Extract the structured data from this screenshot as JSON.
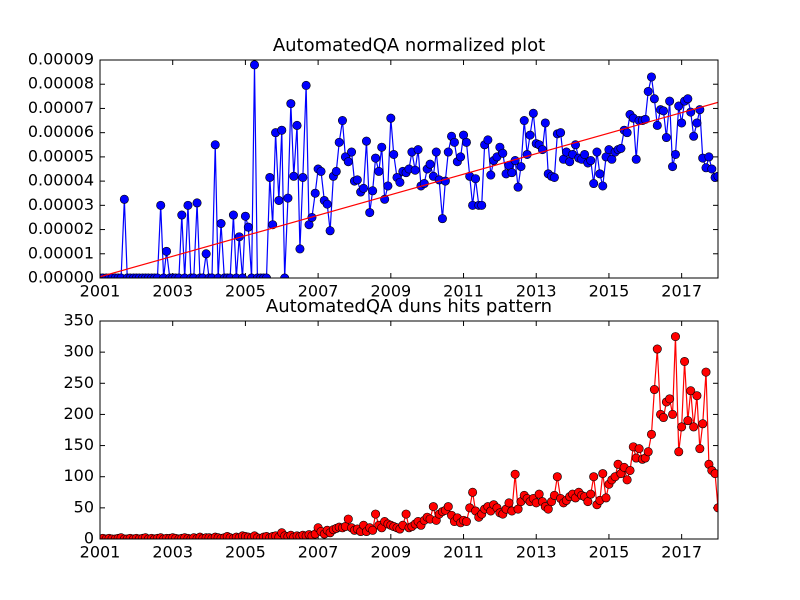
{
  "chart_data": [
    {
      "type": "line",
      "title": "AutomatedQA normalized plot",
      "xlim": [
        2001,
        2018
      ],
      "xticks": [
        2001,
        2003,
        2005,
        2007,
        2009,
        2011,
        2013,
        2015,
        2017
      ],
      "ylim": [
        0,
        9e-05
      ],
      "yticks": [
        {
          "value": 0,
          "label": "0.00000"
        },
        {
          "value": 1e-05,
          "label": "0.00001"
        },
        {
          "value": 2e-05,
          "label": "0.00002"
        },
        {
          "value": 3e-05,
          "label": "0.00003"
        },
        {
          "value": 4e-05,
          "label": "0.00004"
        },
        {
          "value": 5e-05,
          "label": "0.00005"
        },
        {
          "value": 6e-05,
          "label": "0.00006"
        },
        {
          "value": 7e-05,
          "label": "0.00007"
        },
        {
          "value": 8e-05,
          "label": "0.00008"
        },
        {
          "value": 9e-05,
          "label": "0.00009"
        }
      ],
      "x": [
        2001.0,
        2001.08,
        2001.17,
        2001.25,
        2001.33,
        2001.42,
        2001.5,
        2001.58,
        2001.67,
        2001.75,
        2001.83,
        2001.92,
        2002.0,
        2002.08,
        2002.17,
        2002.25,
        2002.33,
        2002.42,
        2002.5,
        2002.58,
        2002.67,
        2002.75,
        2002.83,
        2002.92,
        2003.0,
        2003.08,
        2003.17,
        2003.25,
        2003.33,
        2003.42,
        2003.5,
        2003.58,
        2003.67,
        2003.75,
        2003.83,
        2003.92,
        2004.0,
        2004.08,
        2004.17,
        2004.25,
        2004.33,
        2004.42,
        2004.5,
        2004.58,
        2004.67,
        2004.75,
        2004.83,
        2004.92,
        2005.0,
        2005.08,
        2005.17,
        2005.25,
        2005.33,
        2005.42,
        2005.5,
        2005.58,
        2005.67,
        2005.75,
        2005.83,
        2005.92,
        2006.0,
        2006.08,
        2006.17,
        2006.25,
        2006.33,
        2006.42,
        2006.5,
        2006.58,
        2006.67,
        2006.75,
        2006.83,
        2006.92,
        2007.0,
        2007.08,
        2007.17,
        2007.25,
        2007.33,
        2007.42,
        2007.5,
        2007.58,
        2007.67,
        2007.75,
        2007.83,
        2007.92,
        2008.0,
        2008.08,
        2008.17,
        2008.25,
        2008.33,
        2008.42,
        2008.5,
        2008.58,
        2008.67,
        2008.75,
        2008.83,
        2008.92,
        2009.0,
        2009.08,
        2009.17,
        2009.25,
        2009.33,
        2009.42,
        2009.5,
        2009.58,
        2009.67,
        2009.75,
        2009.83,
        2009.92,
        2010.0,
        2010.08,
        2010.17,
        2010.25,
        2010.33,
        2010.42,
        2010.5,
        2010.58,
        2010.67,
        2010.75,
        2010.83,
        2010.92,
        2011.0,
        2011.08,
        2011.17,
        2011.25,
        2011.33,
        2011.42,
        2011.5,
        2011.58,
        2011.67,
        2011.75,
        2011.83,
        2011.92,
        2012.0,
        2012.08,
        2012.17,
        2012.25,
        2012.33,
        2012.42,
        2012.5,
        2012.58,
        2012.67,
        2012.75,
        2012.83,
        2012.92,
        2013.0,
        2013.08,
        2013.17,
        2013.25,
        2013.33,
        2013.42,
        2013.5,
        2013.58,
        2013.67,
        2013.75,
        2013.83,
        2013.92,
        2014.0,
        2014.08,
        2014.17,
        2014.25,
        2014.33,
        2014.42,
        2014.5,
        2014.58,
        2014.67,
        2014.75,
        2014.83,
        2014.92,
        2015.0,
        2015.08,
        2015.17,
        2015.25,
        2015.33,
        2015.42,
        2015.5,
        2015.58,
        2015.67,
        2015.75,
        2015.83,
        2015.92,
        2016.0,
        2016.08,
        2016.17,
        2016.25,
        2016.33,
        2016.42,
        2016.5,
        2016.58,
        2016.67,
        2016.75,
        2016.83,
        2016.92,
        2017.0,
        2017.08,
        2017.17,
        2017.25,
        2017.33,
        2017.42,
        2017.5,
        2017.58,
        2017.67,
        2017.75,
        2017.83,
        2017.92,
        2018.0
      ],
      "series": [
        {
          "color": "#0000ff",
          "values": [
            0,
            0,
            0,
            0,
            0,
            0,
            0,
            0,
            3.25e-05,
            0,
            0,
            0,
            0,
            0,
            0,
            0,
            0,
            0,
            0,
            0,
            3e-05,
            0,
            1.1e-05,
            0,
            0,
            0,
            0,
            2.6e-05,
            0,
            3e-05,
            0,
            0,
            3.1e-05,
            0,
            0,
            1e-05,
            0,
            0,
            5.5e-05,
            0,
            2.25e-05,
            0,
            0,
            0,
            2.6e-05,
            0,
            1.7e-05,
            0,
            2.55e-05,
            2.1e-05,
            0,
            8.8e-05,
            0,
            0,
            0,
            0,
            4.15e-05,
            2.2e-05,
            6e-05,
            3.2e-05,
            6.1e-05,
            0,
            3.3e-05,
            7.2e-05,
            4.2e-05,
            6.3e-05,
            1.2e-05,
            4.15e-05,
            7.95e-05,
            2.2e-05,
            2.5e-05,
            3.5e-05,
            4.5e-05,
            4.4e-05,
            3.2e-05,
            3.05e-05,
            1.95e-05,
            4.2e-05,
            4.4e-05,
            5.6e-05,
            6.5e-05,
            5e-05,
            4.8e-05,
            5.2e-05,
            4e-05,
            4.05e-05,
            3.55e-05,
            3.7e-05,
            5.65e-05,
            2.7e-05,
            3.6e-05,
            4.95e-05,
            4.4e-05,
            5.4e-05,
            3.25e-05,
            3.8e-05,
            6.6e-05,
            5.1e-05,
            4.15e-05,
            3.95e-05,
            4.4e-05,
            4.35e-05,
            4.5e-05,
            5.2e-05,
            4.45e-05,
            5.3e-05,
            3.8e-05,
            3.9e-05,
            4.5e-05,
            4.7e-05,
            4.2e-05,
            5.2e-05,
            4.05e-05,
            2.45e-05,
            4e-05,
            5.2e-05,
            5.85e-05,
            5.6e-05,
            4.8e-05,
            5e-05,
            5.9e-05,
            5.6e-05,
            4.2e-05,
            3e-05,
            4.1e-05,
            3e-05,
            3e-05,
            5.5e-05,
            5.7e-05,
            4.25e-05,
            4.85e-05,
            5e-05,
            5.4e-05,
            5.15e-05,
            4.3e-05,
            4.65e-05,
            4.35e-05,
            4.85e-05,
            3.75e-05,
            4.6e-05,
            6.5e-05,
            5.1e-05,
            5.9e-05,
            6.8e-05,
            5.55e-05,
            5.5e-05,
            5.3e-05,
            6.4e-05,
            4.3e-05,
            4.2e-05,
            4.15e-05,
            5.95e-05,
            6e-05,
            4.9e-05,
            5.2e-05,
            4.8e-05,
            5.1e-05,
            5.5e-05,
            4.95e-05,
            4.9e-05,
            5.1e-05,
            4.75e-05,
            4.85e-05,
            3.9e-05,
            5.2e-05,
            4.3e-05,
            3.8e-05,
            5e-05,
            5.3e-05,
            4.9e-05,
            5.2e-05,
            5.3e-05,
            5.35e-05,
            6.1e-05,
            6e-05,
            6.75e-05,
            6.6e-05,
            4.9e-05,
            6.5e-05,
            6.5e-05,
            6.55e-05,
            7.7e-05,
            8.3e-05,
            7.4e-05,
            6.3e-05,
            6.95e-05,
            6.9e-05,
            5.8e-05,
            7.3e-05,
            4.6e-05,
            5.1e-05,
            7.1e-05,
            6.4e-05,
            7.3e-05,
            7.4e-05,
            6.85e-05,
            5.85e-05,
            6.4e-05,
            6.95e-05,
            4.95e-05,
            4.55e-05,
            5e-05,
            4.5e-05,
            4.15e-05,
            4.2e-05
          ]
        }
      ],
      "trend": {
        "color": "#ff0000",
        "x": [
          2001,
          2018
        ],
        "values": [
          5e-07,
          7.25e-05
        ]
      }
    },
    {
      "type": "line",
      "title": "AutomatedQA duns hits pattern",
      "xlim": [
        2001,
        2018
      ],
      "xticks": [
        2001,
        2003,
        2005,
        2007,
        2009,
        2011,
        2013,
        2015,
        2017
      ],
      "ylim": [
        0,
        350
      ],
      "yticks": [
        0,
        50,
        100,
        150,
        200,
        250,
        300,
        350
      ],
      "x": [
        2001.0,
        2001.08,
        2001.17,
        2001.25,
        2001.33,
        2001.42,
        2001.5,
        2001.58,
        2001.67,
        2001.75,
        2001.83,
        2001.92,
        2002.0,
        2002.08,
        2002.17,
        2002.25,
        2002.33,
        2002.42,
        2002.5,
        2002.58,
        2002.67,
        2002.75,
        2002.83,
        2002.92,
        2003.0,
        2003.08,
        2003.17,
        2003.25,
        2003.33,
        2003.42,
        2003.5,
        2003.58,
        2003.67,
        2003.75,
        2003.83,
        2003.92,
        2004.0,
        2004.08,
        2004.17,
        2004.25,
        2004.33,
        2004.42,
        2004.5,
        2004.58,
        2004.67,
        2004.75,
        2004.83,
        2004.92,
        2005.0,
        2005.08,
        2005.17,
        2005.25,
        2005.33,
        2005.42,
        2005.5,
        2005.58,
        2005.67,
        2005.75,
        2005.83,
        2005.92,
        2006.0,
        2006.08,
        2006.17,
        2006.25,
        2006.33,
        2006.42,
        2006.5,
        2006.58,
        2006.67,
        2006.75,
        2006.83,
        2006.92,
        2007.0,
        2007.08,
        2007.17,
        2007.25,
        2007.33,
        2007.42,
        2007.5,
        2007.58,
        2007.67,
        2007.75,
        2007.83,
        2007.92,
        2008.0,
        2008.08,
        2008.17,
        2008.25,
        2008.33,
        2008.42,
        2008.5,
        2008.58,
        2008.67,
        2008.75,
        2008.83,
        2008.92,
        2009.0,
        2009.08,
        2009.17,
        2009.25,
        2009.33,
        2009.42,
        2009.5,
        2009.58,
        2009.67,
        2009.75,
        2009.83,
        2009.92,
        2010.0,
        2010.08,
        2010.17,
        2010.25,
        2010.33,
        2010.42,
        2010.5,
        2010.58,
        2010.67,
        2010.75,
        2010.83,
        2010.92,
        2011.0,
        2011.08,
        2011.17,
        2011.25,
        2011.33,
        2011.42,
        2011.5,
        2011.58,
        2011.67,
        2011.75,
        2011.83,
        2011.92,
        2012.0,
        2012.08,
        2012.17,
        2012.25,
        2012.33,
        2012.42,
        2012.5,
        2012.58,
        2012.67,
        2012.75,
        2012.83,
        2012.92,
        2013.0,
        2013.08,
        2013.17,
        2013.25,
        2013.33,
        2013.42,
        2013.5,
        2013.58,
        2013.67,
        2013.75,
        2013.83,
        2013.92,
        2014.0,
        2014.08,
        2014.17,
        2014.25,
        2014.33,
        2014.42,
        2014.5,
        2014.58,
        2014.67,
        2014.75,
        2014.83,
        2014.92,
        2015.0,
        2015.08,
        2015.17,
        2015.25,
        2015.33,
        2015.42,
        2015.5,
        2015.58,
        2015.67,
        2015.75,
        2015.83,
        2015.92,
        2016.0,
        2016.08,
        2016.17,
        2016.25,
        2016.33,
        2016.42,
        2016.5,
        2016.58,
        2016.67,
        2016.75,
        2016.83,
        2016.92,
        2017.0,
        2017.08,
        2017.17,
        2017.25,
        2017.33,
        2017.42,
        2017.5,
        2017.58,
        2017.67,
        2017.75,
        2017.83,
        2017.92,
        2018.0
      ],
      "series": [
        {
          "color": "#ff0000",
          "values": [
            0,
            1,
            0,
            1,
            0,
            0,
            1,
            2,
            0,
            0,
            1,
            0,
            1,
            0,
            1,
            2,
            0,
            1,
            0,
            1,
            2,
            0,
            1,
            1,
            2,
            1,
            0,
            1,
            2,
            1,
            0,
            2,
            1,
            3,
            1,
            2,
            2,
            1,
            3,
            2,
            1,
            2,
            4,
            2,
            1,
            3,
            2,
            5,
            4,
            3,
            2,
            5,
            2,
            1,
            3,
            4,
            2,
            4,
            5,
            3,
            10,
            5,
            4,
            6,
            3,
            5,
            4,
            6,
            5,
            7,
            5,
            8,
            18,
            12,
            8,
            14,
            10,
            15,
            17,
            19,
            18,
            20,
            32,
            18,
            14,
            16,
            12,
            22,
            12,
            18,
            14,
            40,
            22,
            18,
            28,
            24,
            22,
            20,
            18,
            16,
            22,
            40,
            18,
            20,
            24,
            28,
            22,
            30,
            35,
            32,
            52,
            30,
            40,
            44,
            46,
            52,
            38,
            28,
            34,
            26,
            30,
            28,
            50,
            75,
            45,
            35,
            40,
            48,
            52,
            45,
            55,
            50,
            42,
            40,
            48,
            58,
            45,
            104,
            48,
            60,
            70,
            65,
            60,
            65,
            58,
            72,
            60,
            52,
            48,
            60,
            70,
            100,
            65,
            58,
            62,
            68,
            72,
            66,
            75,
            70,
            68,
            60,
            72,
            100,
            55,
            62,
            105,
            66,
            88,
            95,
            100,
            120,
            105,
            115,
            95,
            110,
            148,
            130,
            145,
            128,
            130,
            140,
            168,
            240,
            305,
            200,
            195,
            220,
            225,
            200,
            325,
            140,
            180,
            285,
            190,
            238,
            180,
            230,
            145,
            185,
            268,
            120,
            110,
            105,
            50
          ]
        }
      ]
    }
  ]
}
